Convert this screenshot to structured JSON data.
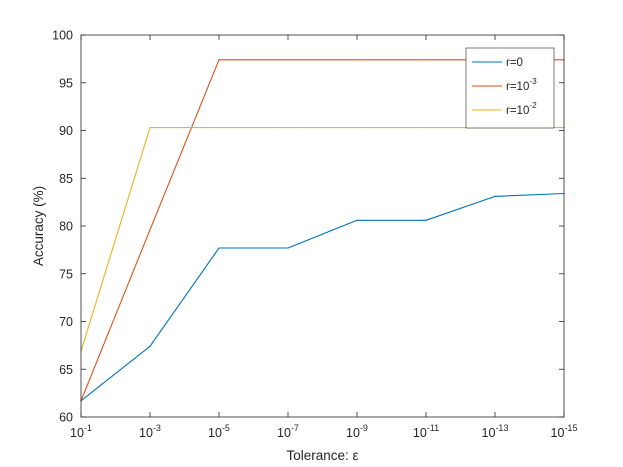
{
  "chart_data": {
    "type": "line",
    "xlabel": "Tolerance: ε",
    "ylabel": "Accuracy (%)",
    "x_scale": "log, reversed",
    "x": [
      0.1,
      0.001,
      1e-05,
      1e-07,
      1e-09,
      1e-11,
      1e-13,
      1e-15
    ],
    "x_tick_labels": [
      {
        "base": "10",
        "exp": "-1"
      },
      {
        "base": "10",
        "exp": "-3"
      },
      {
        "base": "10",
        "exp": "-5"
      },
      {
        "base": "10",
        "exp": "-7"
      },
      {
        "base": "10",
        "exp": "-9"
      },
      {
        "base": "10",
        "exp": "-11"
      },
      {
        "base": "10",
        "exp": "-13"
      },
      {
        "base": "10",
        "exp": "-15"
      }
    ],
    "ylim": [
      60,
      100
    ],
    "y_ticks": [
      60,
      65,
      70,
      75,
      80,
      85,
      90,
      95,
      100
    ],
    "grid": false,
    "legend_position": "top-right",
    "series": [
      {
        "name": "r=0",
        "name_base": "r=0",
        "name_exp": "",
        "color": "#0072BD",
        "values": [
          61.7,
          67.4,
          77.7,
          77.7,
          80.6,
          80.6,
          83.1,
          83.4
        ]
      },
      {
        "name": "r=10^-3",
        "name_base": "r=10",
        "name_exp": "-3",
        "color": "#D95319",
        "values": [
          61.7,
          79.6,
          97.4,
          97.4,
          97.4,
          97.4,
          97.4,
          97.4
        ]
      },
      {
        "name": "r=10^-2",
        "name_base": "r=10",
        "name_exp": "-2",
        "color": "#EDB120",
        "values": [
          66.9,
          90.3,
          90.3,
          90.3,
          90.3,
          90.3,
          90.3,
          90.3
        ]
      }
    ]
  }
}
